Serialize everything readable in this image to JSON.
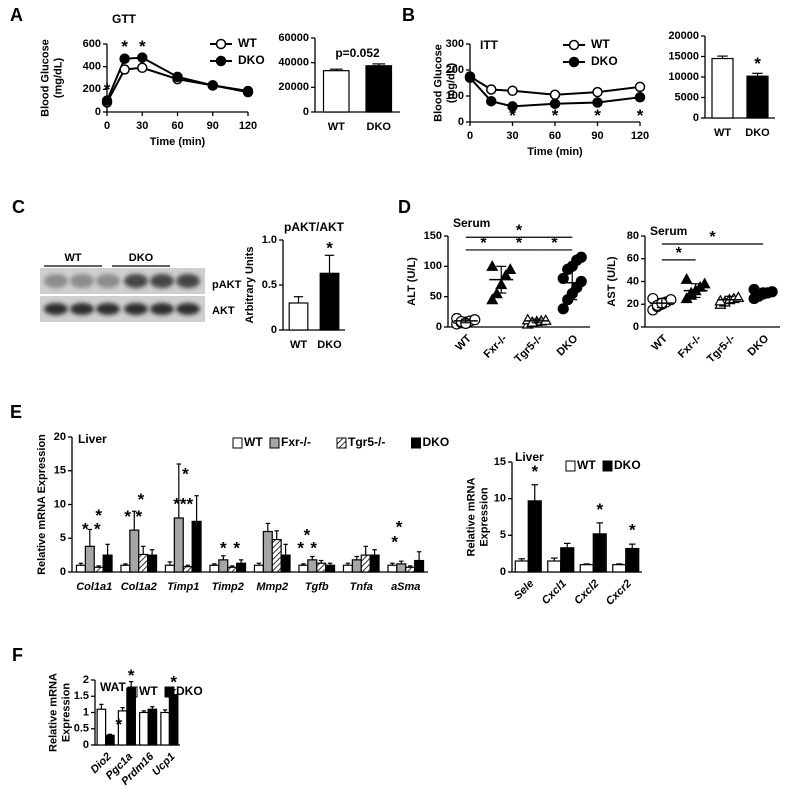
{
  "chart_data": [
    {
      "type": "line",
      "panel": "A",
      "title": "GTT",
      "xlabel": "Time (min)",
      "ylabel": "Blood Glucose (mg/dL)",
      "x": [
        0,
        15,
        30,
        60,
        90,
        120
      ],
      "xlim": [
        0,
        120
      ],
      "xticks": [
        0,
        30,
        60,
        90,
        120
      ],
      "ylim": [
        0,
        600
      ],
      "yticks": [
        0,
        200,
        400,
        600
      ],
      "legend": "upper right",
      "series": [
        {
          "name": "WT",
          "color": "#ffffff",
          "values": [
            85,
            375,
            390,
            290,
            235,
            175
          ]
        },
        {
          "name": "DKO",
          "color": "#000000",
          "values": [
            100,
            470,
            480,
            310,
            235,
            185
          ]
        }
      ],
      "annotations": [
        {
          "text": "*",
          "x": 0,
          "y": 190
        },
        {
          "text": "*",
          "x": 15,
          "y": 570
        },
        {
          "text": "*",
          "x": 30,
          "y": 570
        }
      ]
    },
    {
      "type": "bar",
      "categories": [
        "WT",
        "DKO"
      ],
      "values": [
        33500,
        37500
      ],
      "errors": [
        1200,
        1500
      ],
      "colors": [
        "#ffffff",
        "#000000"
      ],
      "ylim": [
        0,
        60000
      ],
      "yticks": [
        0,
        20000,
        40000,
        60000
      ],
      "annotations": [
        {
          "text": "p=0.052",
          "x": 0.5,
          "y": 47000
        }
      ]
    },
    {
      "type": "line",
      "panel": "B",
      "title": "ITT",
      "xlabel": "Time (min)",
      "ylabel": "Blood Glucose (mg/dL)",
      "x": [
        0,
        15,
        30,
        60,
        90,
        120
      ],
      "xlim": [
        0,
        120
      ],
      "xticks": [
        0,
        30,
        60,
        90,
        120
      ],
      "ylim": [
        0,
        300
      ],
      "yticks": [
        0,
        100,
        200,
        300
      ],
      "legend": "upper right",
      "series": [
        {
          "name": "WT",
          "color": "#ffffff",
          "values": [
            175,
            125,
            120,
            105,
            115,
            135
          ]
        },
        {
          "name": "DKO",
          "color": "#000000",
          "values": [
            170,
            80,
            60,
            70,
            75,
            95
          ]
        }
      ],
      "annotations": [
        {
          "text": "*",
          "x": 30,
          "y": 22
        },
        {
          "text": "*",
          "x": 60,
          "y": 22
        },
        {
          "text": "*",
          "x": 90,
          "y": 22
        },
        {
          "text": "*",
          "x": 120,
          "y": 22
        }
      ]
    },
    {
      "type": "bar",
      "categories": [
        "WT",
        "DKO"
      ],
      "values": [
        14500,
        10200
      ],
      "errors": [
        600,
        700
      ],
      "colors": [
        "#ffffff",
        "#000000"
      ],
      "ylim": [
        0,
        20000
      ],
      "yticks": [
        0,
        5000,
        10000,
        15000,
        20000
      ],
      "annotations": [
        {
          "text": "*",
          "x": 1,
          "y": 13000
        }
      ]
    },
    {
      "type": "blot",
      "panel": "C",
      "groups": [
        "WT",
        "DKO"
      ],
      "bands": [
        "pAKT",
        "AKT"
      ]
    },
    {
      "type": "bar",
      "title": "pAKT/AKT",
      "ylabel": "Arbitrary Units",
      "categories": [
        "WT",
        "DKO"
      ],
      "values": [
        0.3,
        0.63
      ],
      "errors": [
        0.07,
        0.2
      ],
      "colors": [
        "#ffffff",
        "#000000"
      ],
      "ylim": [
        0,
        1
      ],
      "yticks": [
        0,
        0.5,
        {
          "value": 1,
          "label": "1.0"
        }
      ],
      "annotations": [
        {
          "text": "*",
          "x": 1,
          "y": 0.9
        }
      ]
    },
    {
      "type": "dotplot",
      "panel": "D",
      "title": "Serum",
      "ylabel": "ALT (U/L)",
      "ylim": [
        0,
        150
      ],
      "yticks": [
        0,
        50,
        100,
        150
      ],
      "groups": [
        {
          "name": "WT",
          "marker": "circle",
          "color": "#ffffff",
          "points": [
            5,
            7,
            8,
            10,
            12,
            14,
            9,
            6
          ],
          "mean": 10,
          "sd": 3
        },
        {
          "name": "Fxr-/-",
          "marker": "triangle",
          "color": "#000000",
          "points": [
            45,
            55,
            70,
            85,
            95,
            100
          ],
          "mean": 78,
          "sd": 22
        },
        {
          "name": "Tgr5-/-",
          "marker": "triangle",
          "color": "#ffffff",
          "points": [
            5,
            7,
            9,
            10,
            11,
            12,
            8
          ],
          "mean": 10,
          "sd": 3
        },
        {
          "name": "DKO",
          "marker": "circle",
          "color": "#000000",
          "points": [
            30,
            45,
            55,
            65,
            75,
            80,
            95,
            100,
            110,
            115
          ],
          "mean": 73,
          "sd": 28
        }
      ],
      "comparisons": [
        {
          "from": 0,
          "to": 3,
          "y": 148,
          "label": "*"
        },
        {
          "from": 0,
          "to": 1,
          "y": 127,
          "label": "*"
        },
        {
          "from": 1,
          "to": 2,
          "y": 127,
          "label": "*"
        },
        {
          "from": 2,
          "to": 3,
          "y": 127,
          "label": "*"
        }
      ]
    },
    {
      "type": "dotplot",
      "title": "Serum",
      "ylabel": "AST (U/L)",
      "ylim": [
        0,
        80
      ],
      "yticks": [
        0,
        20,
        40,
        60,
        80
      ],
      "groups": [
        {
          "name": "WT",
          "marker": "circle",
          "color": "#ffffff",
          "points": [
            15,
            18,
            20,
            22,
            24,
            25,
            19,
            21
          ],
          "mean": 21,
          "sd": 4
        },
        {
          "name": "Fxr-/-",
          "marker": "triangle",
          "color": "#000000",
          "points": [
            25,
            28,
            32,
            35,
            38,
            42,
            30
          ],
          "mean": 32,
          "sd": 6
        },
        {
          "name": "Tgr5-/-",
          "marker": "triangle",
          "color": "#ffffff",
          "points": [
            20,
            22,
            24,
            25,
            26,
            23
          ],
          "mean": 24,
          "sd": 3
        },
        {
          "name": "DKO",
          "marker": "circle",
          "color": "#000000",
          "points": [
            25,
            27,
            29,
            30,
            31,
            33,
            28,
            30
          ],
          "mean": 30,
          "sd": 3
        }
      ],
      "comparisons": [
        {
          "from": 0,
          "to": 1,
          "y": 59,
          "label": "*"
        },
        {
          "from": 0,
          "to": 3,
          "y": 73,
          "label": "*"
        }
      ]
    },
    {
      "type": "bar",
      "panel": "E",
      "title": "Liver",
      "ylabel": "Relative mRNA Expression",
      "categories": [
        "Col1a1",
        "Col1a2",
        "Timp1",
        "Timp2",
        "Mmp2",
        "Tgfb",
        "Tnfa",
        "aSma"
      ],
      "ylim": [
        0,
        20
      ],
      "yticks": [
        0,
        5,
        10,
        15,
        20
      ],
      "legend": "top",
      "series": [
        {
          "name": "WT",
          "color": "#ffffff",
          "values": [
            1,
            1,
            1,
            1,
            1,
            1,
            1,
            1
          ],
          "errors": [
            0.3,
            0.2,
            0.5,
            0.2,
            0.3,
            0.2,
            0.3,
            0.3
          ]
        },
        {
          "name": "Fxr-/-",
          "color": "#a6a6a6",
          "values": [
            3.8,
            6.2,
            8,
            1.8,
            6,
            1.8,
            1.8,
            1.2
          ],
          "errors": [
            2.5,
            2.8,
            8,
            0.6,
            1.2,
            0.5,
            0.5,
            0.4
          ]
        },
        {
          "name": "Tgr5-/-",
          "color": "#ffffff",
          "pattern": "hatch",
          "values": [
            0.7,
            2.6,
            0.8,
            0.7,
            4.8,
            1.3,
            2.5,
            0.7
          ],
          "errors": [
            0.2,
            1.2,
            0.2,
            0.2,
            1.3,
            0.4,
            1.3,
            0.2
          ]
        },
        {
          "name": "DKO",
          "color": "#000000",
          "values": [
            2.5,
            2.5,
            7.5,
            1.3,
            2.5,
            1,
            2.5,
            1.7
          ],
          "errors": [
            1.6,
            0.8,
            3.8,
            0.5,
            1.6,
            0.3,
            0.8,
            1.3
          ]
        }
      ],
      "annotations": [
        {
          "text": "*",
          "x": -0.2,
          "y": 6.2
        },
        {
          "text": "*",
          "x": 0.07,
          "y": 6.2
        },
        {
          "text": "*",
          "x": 0.1,
          "y": 8.2
        },
        {
          "text": "*",
          "x": 0.75,
          "y": 8.1
        },
        {
          "text": "*",
          "x": 1.0,
          "y": 8.1
        },
        {
          "text": "*",
          "x": 1.05,
          "y": 10.6
        },
        {
          "text": "*",
          "x": 2.05,
          "y": 14.4
        },
        {
          "text": "***",
          "x": 2.0,
          "y": 9.9
        },
        {
          "text": "*",
          "x": 2.9,
          "y": 3.4
        },
        {
          "text": "*",
          "x": 3.2,
          "y": 3.4
        },
        {
          "text": "*",
          "x": 4.78,
          "y": 5.3
        },
        {
          "text": "*",
          "x": 4.64,
          "y": 3.4
        },
        {
          "text": "*",
          "x": 4.93,
          "y": 3.4
        },
        {
          "text": "*",
          "x": 6.85,
          "y": 6.5
        },
        {
          "text": "*",
          "x": 6.75,
          "y": 4.3
        }
      ]
    },
    {
      "type": "bar",
      "title": "Liver",
      "ylabel": "Relative mRNA Expression",
      "categories": [
        "Sele",
        "Cxcl1",
        "Cxcl2",
        "Cxcr2"
      ],
      "ylim": [
        0,
        15
      ],
      "yticks": [
        0,
        5,
        10,
        15
      ],
      "legend": "top",
      "series": [
        {
          "name": "WT",
          "color": "#ffffff",
          "values": [
            1.5,
            1.5,
            1,
            1
          ],
          "errors": [
            0.3,
            0.4,
            0.1,
            0.1
          ]
        },
        {
          "name": "DKO",
          "color": "#000000",
          "values": [
            9.7,
            3.3,
            5.2,
            3.2
          ],
          "errors": [
            2.2,
            0.6,
            1.5,
            0.6
          ]
        }
      ],
      "annotations": [
        {
          "text": "*",
          "x": 0.2,
          "y": 13.6
        },
        {
          "text": "*",
          "x": 2.2,
          "y": 8.4
        },
        {
          "text": "*",
          "x": 3.2,
          "y": 5.6
        }
      ]
    },
    {
      "type": "bar",
      "panel": "F",
      "title": "WAT",
      "ylabel": "Relative mRNA Expression",
      "categories": [
        "Dio2",
        "Pgc1a",
        "Prdm16",
        "Ucp1"
      ],
      "ylim": [
        0,
        2
      ],
      "yticks": [
        0,
        0.5,
        1,
        1.5,
        2
      ],
      "legend": "top",
      "series": [
        {
          "name": "WT",
          "color": "#ffffff",
          "values": [
            1.1,
            1.05,
            1.0,
            1.0
          ],
          "errors": [
            0.15,
            0.1,
            0.05,
            0.08
          ]
        },
        {
          "name": "DKO",
          "color": "#000000",
          "values": [
            0.3,
            1.75,
            1.1,
            1.55
          ],
          "errors": [
            0.03,
            0.2,
            0.08,
            0.15
          ]
        }
      ],
      "annotations": [
        {
          "text": "*",
          "x": 0.62,
          "y": 0.6
        },
        {
          "text": "*",
          "x": 1.2,
          "y": 2.1
        },
        {
          "text": "*",
          "x": 3.2,
          "y": 1.9
        }
      ]
    }
  ]
}
